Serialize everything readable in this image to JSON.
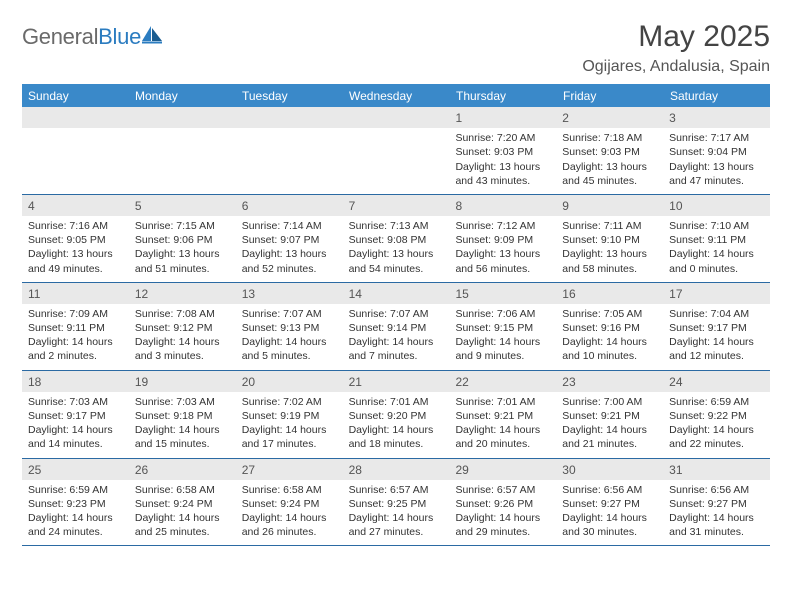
{
  "colors": {
    "header_bg": "#3a89c9",
    "row_border": "#2b6aa3",
    "daynum_bg": "#e9e9e9",
    "logo_gray": "#6a6a6a",
    "logo_blue": "#2b7cc0"
  },
  "logo": {
    "part1": "General",
    "part2": "Blue"
  },
  "title": "May 2025",
  "location": "Ogijares, Andalusia, Spain",
  "weekdays": [
    "Sunday",
    "Monday",
    "Tuesday",
    "Wednesday",
    "Thursday",
    "Friday",
    "Saturday"
  ],
  "leading_blanks": 4,
  "days": [
    {
      "n": 1,
      "sunrise": "7:20 AM",
      "sunset": "9:03 PM",
      "daylight": "13 hours and 43 minutes."
    },
    {
      "n": 2,
      "sunrise": "7:18 AM",
      "sunset": "9:03 PM",
      "daylight": "13 hours and 45 minutes."
    },
    {
      "n": 3,
      "sunrise": "7:17 AM",
      "sunset": "9:04 PM",
      "daylight": "13 hours and 47 minutes."
    },
    {
      "n": 4,
      "sunrise": "7:16 AM",
      "sunset": "9:05 PM",
      "daylight": "13 hours and 49 minutes."
    },
    {
      "n": 5,
      "sunrise": "7:15 AM",
      "sunset": "9:06 PM",
      "daylight": "13 hours and 51 minutes."
    },
    {
      "n": 6,
      "sunrise": "7:14 AM",
      "sunset": "9:07 PM",
      "daylight": "13 hours and 52 minutes."
    },
    {
      "n": 7,
      "sunrise": "7:13 AM",
      "sunset": "9:08 PM",
      "daylight": "13 hours and 54 minutes."
    },
    {
      "n": 8,
      "sunrise": "7:12 AM",
      "sunset": "9:09 PM",
      "daylight": "13 hours and 56 minutes."
    },
    {
      "n": 9,
      "sunrise": "7:11 AM",
      "sunset": "9:10 PM",
      "daylight": "13 hours and 58 minutes."
    },
    {
      "n": 10,
      "sunrise": "7:10 AM",
      "sunset": "9:11 PM",
      "daylight": "14 hours and 0 minutes."
    },
    {
      "n": 11,
      "sunrise": "7:09 AM",
      "sunset": "9:11 PM",
      "daylight": "14 hours and 2 minutes."
    },
    {
      "n": 12,
      "sunrise": "7:08 AM",
      "sunset": "9:12 PM",
      "daylight": "14 hours and 3 minutes."
    },
    {
      "n": 13,
      "sunrise": "7:07 AM",
      "sunset": "9:13 PM",
      "daylight": "14 hours and 5 minutes."
    },
    {
      "n": 14,
      "sunrise": "7:07 AM",
      "sunset": "9:14 PM",
      "daylight": "14 hours and 7 minutes."
    },
    {
      "n": 15,
      "sunrise": "7:06 AM",
      "sunset": "9:15 PM",
      "daylight": "14 hours and 9 minutes."
    },
    {
      "n": 16,
      "sunrise": "7:05 AM",
      "sunset": "9:16 PM",
      "daylight": "14 hours and 10 minutes."
    },
    {
      "n": 17,
      "sunrise": "7:04 AM",
      "sunset": "9:17 PM",
      "daylight": "14 hours and 12 minutes."
    },
    {
      "n": 18,
      "sunrise": "7:03 AM",
      "sunset": "9:17 PM",
      "daylight": "14 hours and 14 minutes."
    },
    {
      "n": 19,
      "sunrise": "7:03 AM",
      "sunset": "9:18 PM",
      "daylight": "14 hours and 15 minutes."
    },
    {
      "n": 20,
      "sunrise": "7:02 AM",
      "sunset": "9:19 PM",
      "daylight": "14 hours and 17 minutes."
    },
    {
      "n": 21,
      "sunrise": "7:01 AM",
      "sunset": "9:20 PM",
      "daylight": "14 hours and 18 minutes."
    },
    {
      "n": 22,
      "sunrise": "7:01 AM",
      "sunset": "9:21 PM",
      "daylight": "14 hours and 20 minutes."
    },
    {
      "n": 23,
      "sunrise": "7:00 AM",
      "sunset": "9:21 PM",
      "daylight": "14 hours and 21 minutes."
    },
    {
      "n": 24,
      "sunrise": "6:59 AM",
      "sunset": "9:22 PM",
      "daylight": "14 hours and 22 minutes."
    },
    {
      "n": 25,
      "sunrise": "6:59 AM",
      "sunset": "9:23 PM",
      "daylight": "14 hours and 24 minutes."
    },
    {
      "n": 26,
      "sunrise": "6:58 AM",
      "sunset": "9:24 PM",
      "daylight": "14 hours and 25 minutes."
    },
    {
      "n": 27,
      "sunrise": "6:58 AM",
      "sunset": "9:24 PM",
      "daylight": "14 hours and 26 minutes."
    },
    {
      "n": 28,
      "sunrise": "6:57 AM",
      "sunset": "9:25 PM",
      "daylight": "14 hours and 27 minutes."
    },
    {
      "n": 29,
      "sunrise": "6:57 AM",
      "sunset": "9:26 PM",
      "daylight": "14 hours and 29 minutes."
    },
    {
      "n": 30,
      "sunrise": "6:56 AM",
      "sunset": "9:27 PM",
      "daylight": "14 hours and 30 minutes."
    },
    {
      "n": 31,
      "sunrise": "6:56 AM",
      "sunset": "9:27 PM",
      "daylight": "14 hours and 31 minutes."
    }
  ],
  "labels": {
    "sunrise": "Sunrise: ",
    "sunset": "Sunset: ",
    "daylight": "Daylight: "
  }
}
